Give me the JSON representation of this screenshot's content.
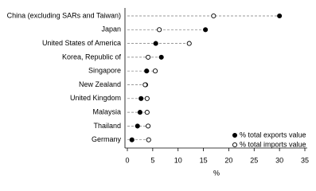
{
  "chart_data": {
    "type": "dot",
    "categories": [
      "China (excluding SARs and Taiwan)",
      "Japan",
      "United States of America",
      "Korea, Republic of",
      "Singapore",
      "New Zealand",
      "United Kingdom",
      "Malaysia",
      "Thailand",
      "Germany"
    ],
    "series": [
      {
        "name": "% total exports value",
        "color": "#000000",
        "filled": true,
        "values": [
          30.0,
          15.4,
          5.6,
          6.7,
          3.8,
          3.6,
          2.7,
          2.5,
          2.0,
          0.9
        ]
      },
      {
        "name": "% total imports value",
        "color": "#000000",
        "filled": false,
        "values": [
          17.0,
          6.3,
          12.2,
          4.1,
          5.5,
          3.5,
          3.9,
          3.9,
          4.1,
          4.2
        ]
      }
    ],
    "xlabel": "%",
    "xlim": [
      0,
      35
    ],
    "xticks": [
      0,
      5,
      10,
      15,
      20,
      25,
      30,
      35
    ],
    "legend": "lower right"
  }
}
